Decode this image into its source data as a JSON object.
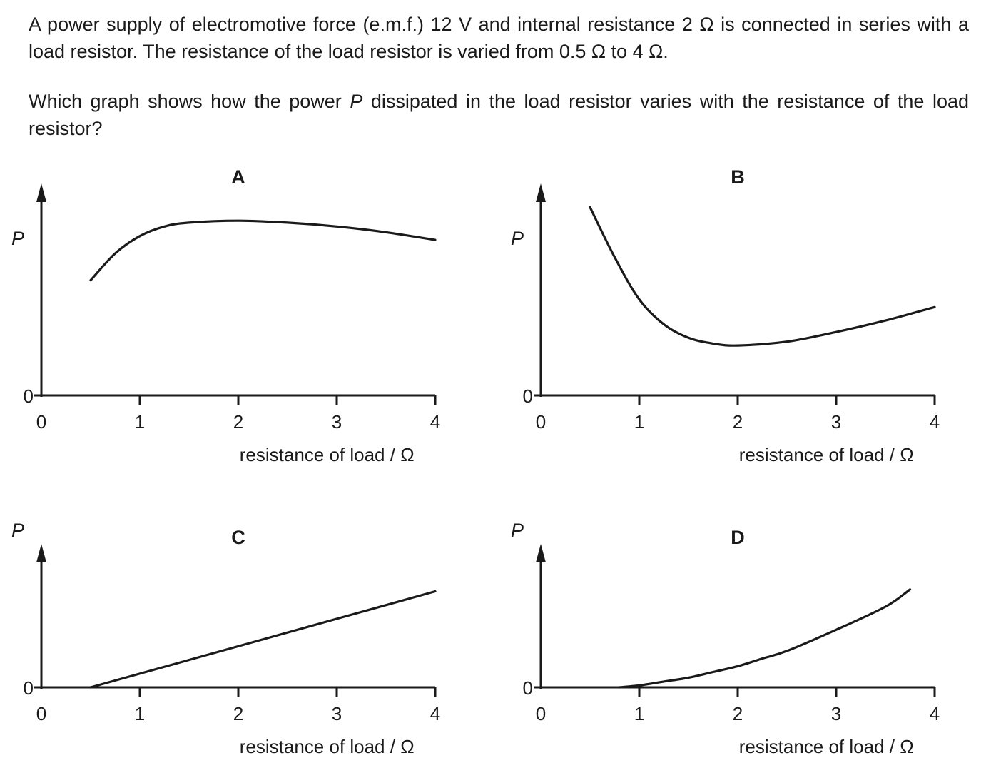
{
  "question": {
    "line1": "A power supply of electromotive force (e.m.f.) 12 V and internal resistance 2 Ω is connected in series with a load resistor. The resistance of the load resistor is varied from 0.5 Ω to 4 Ω.",
    "line2": "Which graph shows how the power P dissipated in the load resistor varies with the resistance of the load resistor?"
  },
  "chart_data": [
    {
      "type": "line",
      "title": "A",
      "xlabel": "resistance of load / Ω",
      "ylabel": "P",
      "x_ticks": [
        "0",
        "1",
        "2",
        "3",
        "4"
      ],
      "y_ticks": [
        "0"
      ],
      "xlim": [
        0,
        4
      ],
      "ylim": [
        0,
        1
      ],
      "series": [
        {
          "x": [
            0.5,
            0.75,
            1.0,
            1.25,
            1.5,
            2.0,
            2.5,
            3.0,
            3.5,
            4.0
          ],
          "y": [
            0.6,
            0.74,
            0.83,
            0.88,
            0.9,
            0.91,
            0.9,
            0.88,
            0.85,
            0.81
          ]
        }
      ]
    },
    {
      "type": "line",
      "title": "B",
      "xlabel": "resistance of load / Ω",
      "ylabel": "P",
      "x_ticks": [
        "0",
        "1",
        "2",
        "3",
        "4"
      ],
      "y_ticks": [
        "0"
      ],
      "xlim": [
        0,
        4
      ],
      "ylim": [
        0,
        1
      ],
      "series": [
        {
          "x": [
            0.5,
            0.75,
            1.0,
            1.25,
            1.5,
            1.75,
            2.0,
            2.5,
            3.0,
            3.5,
            4.0
          ],
          "y": [
            0.98,
            0.72,
            0.5,
            0.37,
            0.3,
            0.27,
            0.26,
            0.28,
            0.33,
            0.39,
            0.46
          ]
        }
      ]
    },
    {
      "type": "line",
      "title": "C",
      "xlabel": "resistance of load / Ω",
      "ylabel": "P",
      "x_ticks": [
        "0",
        "1",
        "2",
        "3",
        "4"
      ],
      "y_ticks": [
        "0"
      ],
      "xlim": [
        0,
        4
      ],
      "ylim": [
        0,
        1
      ],
      "series": [
        {
          "x": [
            0.5,
            4.0
          ],
          "y": [
            0.0,
            0.5
          ]
        }
      ]
    },
    {
      "type": "line",
      "title": "D",
      "xlabel": "resistance of load / Ω",
      "ylabel": "P",
      "x_ticks": [
        "0",
        "1",
        "2",
        "3",
        "4"
      ],
      "y_ticks": [
        "0"
      ],
      "xlim": [
        0,
        4
      ],
      "ylim": [
        0,
        1
      ],
      "series": [
        {
          "x": [
            0.8,
            1.0,
            1.25,
            1.5,
            1.75,
            2.0,
            2.25,
            2.5,
            3.0,
            3.5,
            3.75
          ],
          "y": [
            0.0,
            0.01,
            0.03,
            0.05,
            0.08,
            0.11,
            0.15,
            0.19,
            0.3,
            0.42,
            0.51
          ]
        }
      ]
    }
  ]
}
